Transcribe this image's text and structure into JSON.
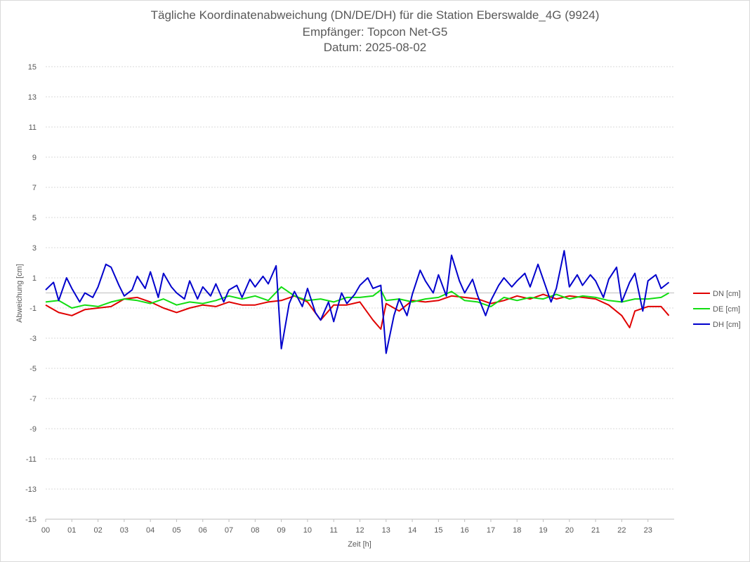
{
  "chart_data": {
    "type": "line",
    "title_lines": [
      "Tägliche Koordinatenabweichung (DN/DE/DH) für die Station Eberswalde_4G (9924)",
      "Empfänger: Topcon Net-G5",
      "Datum: 2025-08-02"
    ],
    "xlabel": "Zeit [h]",
    "ylabel": "Abweichung [cm]",
    "xlim": [
      0,
      24
    ],
    "ylim": [
      -15,
      15
    ],
    "x_ticks": [
      "00",
      "01",
      "02",
      "03",
      "04",
      "05",
      "06",
      "07",
      "08",
      "09",
      "10",
      "11",
      "12",
      "13",
      "14",
      "15",
      "16",
      "17",
      "18",
      "19",
      "20",
      "21",
      "22",
      "23"
    ],
    "y_ticks": [
      15,
      13,
      11,
      9,
      7,
      5,
      3,
      1,
      -1,
      -3,
      -5,
      -7,
      -9,
      -11,
      -13,
      -15
    ],
    "grid": true,
    "legend_position": "right",
    "series": [
      {
        "name": "DN [cm]",
        "color": "#e00000",
        "x": [
          0,
          0.5,
          1,
          1.5,
          2,
          2.5,
          3,
          3.5,
          4,
          4.5,
          5,
          5.5,
          6,
          6.5,
          7,
          7.5,
          8,
          8.5,
          9,
          9.5,
          10,
          10.5,
          11,
          11.5,
          12,
          12.5,
          12.8,
          13,
          13.5,
          14,
          14.5,
          15,
          15.5,
          16,
          16.5,
          17,
          17.5,
          18,
          18.5,
          19,
          19.5,
          20,
          20.5,
          21,
          21.5,
          22,
          22.3,
          22.5,
          23,
          23.5,
          23.8
        ],
        "values": [
          -0.8,
          -1.3,
          -1.5,
          -1.1,
          -1.0,
          -0.9,
          -0.4,
          -0.3,
          -0.6,
          -1.0,
          -1.3,
          -1.0,
          -0.8,
          -0.9,
          -0.6,
          -0.8,
          -0.8,
          -0.6,
          -0.5,
          -0.2,
          -0.6,
          -1.8,
          -0.8,
          -0.8,
          -0.6,
          -1.8,
          -2.4,
          -0.7,
          -1.2,
          -0.5,
          -0.6,
          -0.5,
          -0.2,
          -0.3,
          -0.4,
          -0.7,
          -0.5,
          -0.2,
          -0.4,
          -0.1,
          -0.4,
          -0.2,
          -0.3,
          -0.4,
          -0.8,
          -1.5,
          -2.3,
          -1.2,
          -0.9,
          -0.9,
          -1.5
        ]
      },
      {
        "name": "DE [cm]",
        "color": "#11dd11",
        "x": [
          0,
          0.5,
          1,
          1.5,
          2,
          2.5,
          3,
          3.5,
          4,
          4.5,
          5,
          5.5,
          6,
          6.5,
          7,
          7.5,
          8,
          8.5,
          9,
          9.5,
          10,
          10.5,
          11,
          11.5,
          12,
          12.5,
          12.8,
          13,
          13.5,
          14,
          14.5,
          15,
          15.5,
          16,
          16.5,
          17,
          17.5,
          18,
          18.5,
          19,
          19.5,
          20,
          20.5,
          21,
          21.5,
          22,
          22.5,
          23,
          23.5,
          23.8
        ],
        "values": [
          -0.6,
          -0.5,
          -1.0,
          -0.8,
          -0.9,
          -0.6,
          -0.4,
          -0.5,
          -0.7,
          -0.4,
          -0.8,
          -0.6,
          -0.7,
          -0.5,
          -0.2,
          -0.4,
          -0.2,
          -0.5,
          0.4,
          -0.2,
          -0.5,
          -0.4,
          -0.6,
          -0.3,
          -0.3,
          -0.2,
          0.2,
          -0.5,
          -0.4,
          -0.6,
          -0.4,
          -0.3,
          0.1,
          -0.5,
          -0.6,
          -0.9,
          -0.3,
          -0.5,
          -0.3,
          -0.4,
          -0.1,
          -0.4,
          -0.2,
          -0.3,
          -0.5,
          -0.6,
          -0.4,
          -0.4,
          -0.3,
          0.0
        ]
      },
      {
        "name": "DH [cm]",
        "color": "#0000cc",
        "x": [
          0,
          0.3,
          0.5,
          0.8,
          1,
          1.3,
          1.5,
          1.8,
          2,
          2.3,
          2.5,
          2.8,
          3,
          3.3,
          3.5,
          3.8,
          4,
          4.3,
          4.5,
          4.8,
          5,
          5.3,
          5.5,
          5.8,
          6,
          6.3,
          6.5,
          6.8,
          7,
          7.3,
          7.5,
          7.8,
          8,
          8.3,
          8.5,
          8.8,
          9,
          9.3,
          9.5,
          9.8,
          10,
          10.3,
          10.5,
          10.8,
          11,
          11.3,
          11.5,
          11.8,
          12,
          12.3,
          12.5,
          12.8,
          13,
          13.3,
          13.5,
          13.8,
          14,
          14.3,
          14.5,
          14.8,
          15,
          15.3,
          15.5,
          15.8,
          16,
          16.3,
          16.5,
          16.8,
          17,
          17.3,
          17.5,
          17.8,
          18,
          18.3,
          18.5,
          18.8,
          19,
          19.3,
          19.5,
          19.8,
          20,
          20.3,
          20.5,
          20.8,
          21,
          21.3,
          21.5,
          21.8,
          22,
          22.3,
          22.5,
          22.8,
          23,
          23.3,
          23.5,
          23.8
        ],
        "values": [
          0.2,
          0.7,
          -0.5,
          1.0,
          0.3,
          -0.6,
          0.0,
          -0.3,
          0.4,
          1.9,
          1.7,
          0.5,
          -0.2,
          0.2,
          1.1,
          0.3,
          1.4,
          -0.3,
          1.3,
          0.4,
          0.0,
          -0.4,
          0.8,
          -0.4,
          0.4,
          -0.2,
          0.6,
          -0.6,
          0.2,
          0.5,
          -0.3,
          0.9,
          0.4,
          1.1,
          0.6,
          1.8,
          -3.7,
          -0.7,
          0.1,
          -0.9,
          0.3,
          -1.3,
          -1.8,
          -0.6,
          -1.9,
          0.0,
          -0.7,
          -0.1,
          0.5,
          1.0,
          0.3,
          0.5,
          -4.0,
          -1.5,
          -0.4,
          -1.5,
          -0.1,
          1.5,
          0.8,
          0.0,
          1.2,
          -0.2,
          2.5,
          0.8,
          0.0,
          0.9,
          -0.2,
          -1.5,
          -0.5,
          0.5,
          1.0,
          0.4,
          0.8,
          1.3,
          0.4,
          1.9,
          0.9,
          -0.6,
          0.3,
          2.8,
          0.4,
          1.2,
          0.5,
          1.2,
          0.8,
          -0.3,
          0.9,
          1.7,
          -0.6,
          0.7,
          1.3,
          -1.2,
          0.8,
          1.2,
          0.3,
          0.7
        ]
      }
    ]
  }
}
